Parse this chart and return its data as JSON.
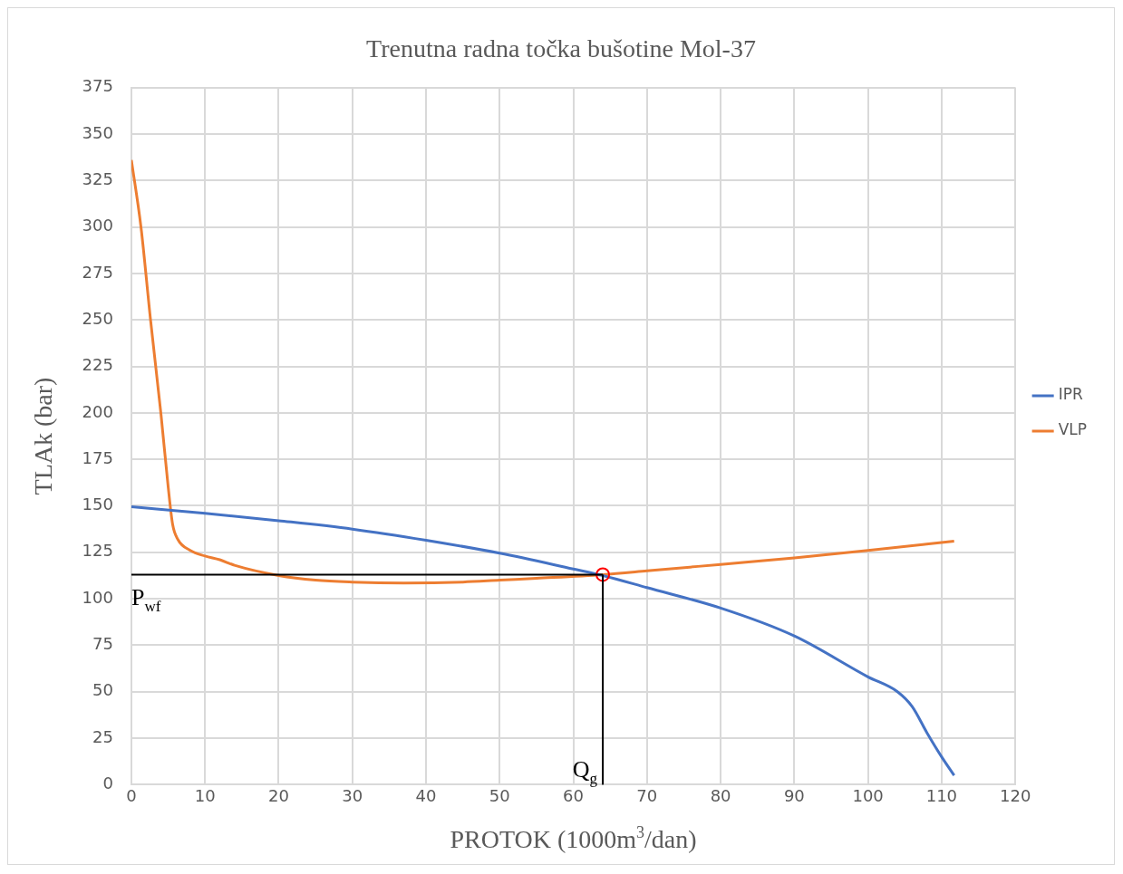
{
  "chart_data": {
    "type": "line",
    "title": "Trenutna radna točka bušotine Mol-37",
    "xlabel": "PROTOK (1000m$^{3}$/dan)",
    "ylabel": "TLAk (bar)",
    "xlim": [
      0,
      120
    ],
    "xticks": [
      0,
      10,
      20,
      30,
      40,
      50,
      60,
      70,
      80,
      90,
      100,
      110,
      120
    ],
    "ylim": [
      0,
      375
    ],
    "yticks": [
      0,
      25,
      50,
      75,
      100,
      125,
      150,
      175,
      200,
      225,
      250,
      275,
      300,
      325,
      350,
      375
    ],
    "grid": true,
    "legend": "right",
    "marker": "none",
    "line_style": "solid",
    "series": [
      {
        "name": "IPR",
        "color": "#4472c4",
        "x": [
          0,
          10,
          20,
          30,
          40,
          50,
          60,
          64,
          70,
          80,
          90,
          100,
          104,
          106,
          108,
          110,
          111.7
        ],
        "values": [
          149.5,
          146,
          142,
          137.5,
          131.5,
          124.5,
          116,
          112.5,
          106,
          95,
          80,
          58,
          50,
          42,
          28,
          15,
          5
        ]
      },
      {
        "name": "VLP",
        "color": "#ed7d31",
        "x": [
          0,
          1.3,
          2.6,
          4,
          5,
          5.6,
          6.3,
          8,
          10,
          12,
          14,
          20,
          25,
          30,
          37,
          45,
          50,
          55,
          64,
          70,
          80,
          90,
          100,
          111.7
        ],
        "values": [
          336,
          300,
          250,
          200,
          160,
          140,
          132,
          126,
          123,
          121,
          118,
          112.5,
          110,
          109,
          108.5,
          109,
          110,
          111,
          113,
          115,
          118.5,
          122,
          126,
          131
        ]
      },
      {
        "type": "scatter",
        "color": "#ff0000",
        "marker": "circle",
        "x": [
          64
        ],
        "values": [
          113
        ]
      }
    ],
    "ref_lines": [
      {
        "axis": "y",
        "value": 113,
        "label": "P$_{wf}$",
        "color": "#000000"
      },
      {
        "axis": "x",
        "value": 64,
        "label": "Q$_{g}$",
        "color": "#000000"
      }
    ]
  }
}
